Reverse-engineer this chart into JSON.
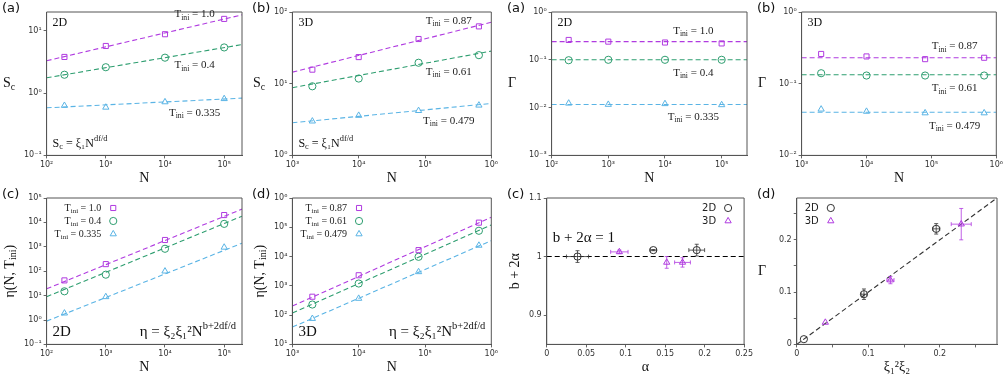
{
  "chart_data": [
    {
      "type": "scatter",
      "title": "(a)",
      "xlabel": "N",
      "ylabel": "S$_{c}$",
      "log": "xy",
      "xlim": [
        100,
        200000
      ],
      "xticks": [
        {
          "value": 100,
          "label": "10²"
        },
        {
          "value": 1000,
          "label": "10³"
        },
        {
          "value": 10000,
          "label": "10⁴"
        },
        {
          "value": 100000,
          "label": "10⁵"
        }
      ],
      "ylim": [
        0.1,
        20
      ],
      "yticks": [
        {
          "value": 0.1,
          "label": "10⁻¹"
        },
        {
          "value": 1,
          "label": "10⁰"
        },
        {
          "value": 10,
          "label": "10¹"
        }
      ],
      "x": [
        200,
        1000,
        10000,
        100000
      ],
      "legend": false,
      "series": [
        {
          "name": "T$_{ini}$ = 1.0",
          "color": "#b03be0",
          "marker": "square",
          "values": [
            3.8,
            5.7,
            8.8,
            15.5
          ]
        },
        {
          "name": "T$_{ini}$ = 0.4",
          "color": "#2e9e70",
          "marker": "circle",
          "values": [
            1.97,
            2.6,
            3.7,
            5.4
          ]
        },
        {
          "name": "T$_{ini}$ = 0.335",
          "color": "#5ab4e5",
          "marker": "triangle",
          "values": [
            0.63,
            0.59,
            0.72,
            0.81
          ]
        },
        {
          "type": "line",
          "line_style": "dashed",
          "color": "#b03be0",
          "x": [
            100,
            200000
          ],
          "values": [
            3.3,
            18
          ]
        },
        {
          "type": "line",
          "line_style": "dashed",
          "color": "#2e9e70",
          "x": [
            100,
            200000
          ],
          "values": [
            1.76,
            6.0
          ]
        },
        {
          "type": "line",
          "line_style": "dashed",
          "color": "#5ab4e5",
          "x": [
            100,
            200000
          ],
          "values": [
            0.58,
            0.83
          ]
        }
      ],
      "annotations": [
        "2D",
        "S$_{c}$ = ξ₁N$^{df/d}$"
      ]
    },
    {
      "type": "scatter",
      "title": "(b)",
      "xlabel": "N",
      "ylabel": "S$_{c}$",
      "log": "xy",
      "xlim": [
        1000,
        1000000
      ],
      "xticks": [
        {
          "value": 1000,
          "label": "10³"
        },
        {
          "value": 10000,
          "label": "10⁴"
        },
        {
          "value": 100000,
          "label": "10⁵"
        },
        {
          "value": 1000000,
          "label": "10⁶"
        }
      ],
      "ylim": [
        1,
        100
      ],
      "yticks": [
        {
          "value": 1,
          "label": "10⁰"
        },
        {
          "value": 10,
          "label": "10¹"
        },
        {
          "value": 100,
          "label": "10²"
        }
      ],
      "x": [
        2000,
        10000,
        80000,
        650000
      ],
      "legend": false,
      "series": [
        {
          "name": "T$_{ini}$ = 0.87",
          "color": "#b03be0",
          "marker": "square",
          "values": [
            15.7,
            23.5,
            42,
            63
          ]
        },
        {
          "name": "T$_{ini}$ = 0.61",
          "color": "#2e9e70",
          "marker": "circle",
          "values": [
            9.2,
            11.8,
            19.6,
            25
          ]
        },
        {
          "name": "T$_{ini}$ = 0.479",
          "color": "#5ab4e5",
          "marker": "triangle",
          "values": [
            3.0,
            3.6,
            4.2,
            5.0
          ]
        },
        {
          "type": "line",
          "line_style": "dashed",
          "color": "#b03be0",
          "x": [
            1000,
            1000000
          ],
          "values": [
            14.5,
            72
          ]
        },
        {
          "type": "line",
          "line_style": "dashed",
          "color": "#2e9e70",
          "x": [
            1000,
            1000000
          ],
          "values": [
            8.8,
            28.5
          ]
        },
        {
          "type": "line",
          "line_style": "dashed",
          "color": "#5ab4e5",
          "x": [
            1000,
            1000000
          ],
          "values": [
            2.85,
            5.3
          ]
        }
      ],
      "annotations": [
        "3D",
        "S$_{c}$ = ξ₁N$^{df/d}$"
      ]
    },
    {
      "type": "scatter",
      "title": "(c)",
      "xlabel": "N",
      "ylabel": "η(N, T$_{ini}$)",
      "log": "xy",
      "xlim": [
        100,
        200000
      ],
      "xticks": [
        {
          "value": 100,
          "label": "10²"
        },
        {
          "value": 1000,
          "label": "10³"
        },
        {
          "value": 10000,
          "label": "10⁴"
        },
        {
          "value": 100000,
          "label": "10⁵"
        }
      ],
      "ylim": [
        0.1,
        100000
      ],
      "yticks": [
        {
          "value": 0.1,
          "label": "10⁻¹"
        },
        {
          "value": 1,
          "label": "10⁰"
        },
        {
          "value": 10,
          "label": "10¹"
        },
        {
          "value": 100,
          "label": "10²"
        },
        {
          "value": 1000,
          "label": "10³"
        },
        {
          "value": 10000,
          "label": "10⁴"
        },
        {
          "value": 100000,
          "label": "10⁵"
        }
      ],
      "x": [
        200,
        1000,
        10000,
        100000
      ],
      "legend": "top left",
      "series": [
        {
          "name": "T$_{ini}$ = 1.0",
          "color": "#b03be0",
          "marker": "square",
          "values": [
            42,
            195,
            1900,
            20000
          ]
        },
        {
          "name": "T$_{ini}$ = 0.4",
          "color": "#2e9e70",
          "marker": "circle",
          "values": [
            15,
            72,
            830,
            8700
          ]
        },
        {
          "name": "T$_{ini}$ = 0.335",
          "color": "#5ab4e5",
          "marker": "triangle",
          "values": [
            1.9,
            8.9,
            100,
            950
          ]
        },
        {
          "type": "line",
          "line_style": "dashed",
          "color": "#b03be0",
          "x": [
            100,
            200000
          ],
          "values": [
            19,
            35000
          ]
        },
        {
          "type": "line",
          "line_style": "dashed",
          "color": "#2e9e70",
          "x": [
            100,
            200000
          ],
          "values": [
            9,
            18000
          ]
        },
        {
          "type": "line",
          "line_style": "dashed",
          "color": "#5ab4e5",
          "x": [
            100,
            200000
          ],
          "values": [
            0.9,
            1400
          ]
        }
      ],
      "annotations": [
        "2D",
        "η = ξ₂ξ₁²N$^{b+2df/d}$"
      ]
    },
    {
      "type": "scatter",
      "title": "(d)",
      "xlabel": "N",
      "ylabel": "η(N, T$_{ini}$)",
      "log": "xy",
      "xlim": [
        1000,
        1000000
      ],
      "xticks": [
        {
          "value": 1000,
          "label": "10³"
        },
        {
          "value": 10000,
          "label": "10⁴"
        },
        {
          "value": 100000,
          "label": "10⁵"
        },
        {
          "value": 1000000,
          "label": "10⁶"
        }
      ],
      "ylim": [
        10,
        1000000
      ],
      "yticks": [
        {
          "value": 10,
          "label": "10¹"
        },
        {
          "value": 100,
          "label": "10²"
        },
        {
          "value": 1000,
          "label": "10³"
        },
        {
          "value": 10000,
          "label": "10⁴"
        },
        {
          "value": 100000,
          "label": "10⁵"
        },
        {
          "value": 1000000,
          "label": "10⁶"
        }
      ],
      "x": [
        2000,
        10000,
        80000,
        650000
      ],
      "legend": "top left",
      "series": [
        {
          "name": "T$_{ini}$ = 0.87",
          "color": "#b03be0",
          "marker": "square",
          "values": [
            425,
            2300,
            16600,
            144000
          ]
        },
        {
          "name": "T$_{ini}$ = 0.61",
          "color": "#2e9e70",
          "marker": "circle",
          "values": [
            230,
            1200,
            9800,
            76000
          ]
        },
        {
          "name": "T$_{ini}$ = 0.479",
          "color": "#5ab4e5",
          "marker": "triangle",
          "values": [
            76,
            370,
            3000,
            24000
          ]
        },
        {
          "type": "line",
          "line_style": "dashed",
          "color": "#b03be0",
          "x": [
            1000,
            1000000
          ],
          "values": [
            205,
            220000
          ]
        },
        {
          "type": "line",
          "line_style": "dashed",
          "color": "#2e9e70",
          "x": [
            1000,
            1000000
          ],
          "values": [
            118,
            120000
          ]
        },
        {
          "type": "line",
          "line_style": "dashed",
          "color": "#5ab4e5",
          "x": [
            1000,
            1000000
          ],
          "values": [
            39,
            35000
          ]
        }
      ],
      "annotations": [
        "3D",
        "η = ξ₂ξ₁²N$^{b+2df/d}$"
      ]
    },
    {
      "type": "scatter",
      "title": "(a)",
      "xlabel": "N",
      "ylabel": "Γ",
      "log": "xy",
      "xlim": [
        100,
        280000
      ],
      "xticks": [
        {
          "value": 100,
          "label": "10²"
        },
        {
          "value": 1000,
          "label": "10³"
        },
        {
          "value": 10000,
          "label": "10⁴"
        },
        {
          "value": 100000,
          "label": "10⁵"
        }
      ],
      "ylim": [
        0.001,
        1
      ],
      "yticks": [
        {
          "value": 0.001,
          "label": "10⁻³"
        },
        {
          "value": 0.01,
          "label": "10⁻²"
        },
        {
          "value": 0.1,
          "label": "10⁻¹"
        },
        {
          "value": 1,
          "label": "10⁰"
        }
      ],
      "x": [
        200,
        1000,
        10000,
        100000
      ],
      "legend": false,
      "series": [
        {
          "name": "T$_{ini}$ = 1.0",
          "color": "#b03be0",
          "marker": "square",
          "values": [
            0.26,
            0.24,
            0.23,
            0.22
          ]
        },
        {
          "name": "T$_{ini}$ = 0.4",
          "color": "#2e9e70",
          "marker": "circle",
          "values": [
            0.098,
            0.1,
            0.1,
            0.1
          ]
        },
        {
          "name": "T$_{ini}$ = 0.335",
          "color": "#5ab4e5",
          "marker": "triangle",
          "values": [
            0.0123,
            0.0116,
            0.012,
            0.0114
          ]
        },
        {
          "type": "line",
          "line_style": "dashed",
          "color": "#b03be0",
          "x": [
            100,
            280000
          ],
          "values": [
            0.24,
            0.24
          ]
        },
        {
          "type": "line",
          "line_style": "dashed",
          "color": "#2e9e70",
          "x": [
            100,
            280000
          ],
          "values": [
            0.1,
            0.1
          ]
        },
        {
          "type": "line",
          "line_style": "dashed",
          "color": "#5ab4e5",
          "x": [
            100,
            280000
          ],
          "values": [
            0.0116,
            0.0116
          ]
        }
      ],
      "annotations": [
        "2D"
      ]
    },
    {
      "type": "scatter",
      "title": "(b)",
      "xlabel": "N",
      "ylabel": "Γ",
      "log": "xy",
      "xlim": [
        1000,
        1000000
      ],
      "xticks": [
        {
          "value": 1000,
          "label": "10³"
        },
        {
          "value": 10000,
          "label": "10⁴"
        },
        {
          "value": 100000,
          "label": "10⁵"
        },
        {
          "value": 1000000,
          "label": "10⁶"
        }
      ],
      "ylim": [
        0.01,
        1
      ],
      "yticks": [
        {
          "value": 0.01,
          "label": "10⁻²"
        },
        {
          "value": 0.1,
          "label": "10⁻¹"
        },
        {
          "value": 1,
          "label": "10⁰"
        }
      ],
      "x": [
        2000,
        10000,
        80000,
        650000
      ],
      "legend": false,
      "series": [
        {
          "name": "T$_{ini}$ = 0.87",
          "color": "#b03be0",
          "marker": "square",
          "values": [
            0.26,
            0.24,
            0.22,
            0.23
          ]
        },
        {
          "name": "T$_{ini}$ = 0.61",
          "color": "#2e9e70",
          "marker": "circle",
          "values": [
            0.14,
            0.13,
            0.13,
            0.13
          ]
        },
        {
          "name": "T$_{ini}$ = 0.479",
          "color": "#5ab4e5",
          "marker": "triangle",
          "values": [
            0.044,
            0.041,
            0.039,
            0.039
          ]
        },
        {
          "type": "line",
          "line_style": "dashed",
          "color": "#b03be0",
          "x": [
            1000,
            1000000
          ],
          "values": [
            0.23,
            0.23
          ]
        },
        {
          "type": "line",
          "line_style": "dashed",
          "color": "#2e9e70",
          "x": [
            1000,
            1000000
          ],
          "values": [
            0.133,
            0.133
          ]
        },
        {
          "type": "line",
          "line_style": "dashed",
          "color": "#5ab4e5",
          "x": [
            1000,
            1000000
          ],
          "values": [
            0.04,
            0.04
          ]
        }
      ],
      "annotations": [
        "3D"
      ]
    },
    {
      "type": "scatter",
      "title": "(c)",
      "xlabel": "α",
      "ylabel": "b + 2α",
      "xlim": [
        0,
        0.25
      ],
      "xticks": [
        0,
        0.05,
        0.1,
        0.15,
        0.2,
        0.25
      ],
      "ylim": [
        0.85,
        1.1
      ],
      "yticks": [
        0.9,
        1,
        1.1
      ],
      "legend": "top right",
      "series": [
        {
          "name": "2D",
          "color": "#333333",
          "marker": "circle",
          "x": [
            0.039,
            0.135,
            0.19
          ],
          "values": [
            1,
            1.011,
            1.011
          ],
          "errors": [
            0.01,
            0.001,
            0.01
          ],
          "xerrors": [
            0.014,
            0.004,
            0.01
          ]
        },
        {
          "name": "3D",
          "color": "#b03be0",
          "marker": "triangle",
          "x": [
            0.092,
            0.152,
            0.172
          ],
          "values": [
            1.008,
            0.99,
            0.99
          ],
          "errors": [
            0.003,
            0.01,
            0.008
          ],
          "xerrors": [
            0.011,
            null,
            0.01
          ]
        }
      ],
      "ref_lines": [
        {
          "axis": "y",
          "value": 1,
          "line_style": "dashed",
          "color": "#000000"
        }
      ],
      "annotations": [
        "b + 2α = 1"
      ]
    },
    {
      "type": "scatter",
      "title": "(d)",
      "xlabel": "ξ₁²ξ₂",
      "ylabel": "Γ",
      "xlim": [
        0,
        0.28
      ],
      "xticks": [
        0,
        {
          "value": 0.05,
          "label": null
        },
        0.1,
        {
          "value": 0.15,
          "label": null
        },
        0.2,
        {
          "value": 0.25,
          "label": null
        }
      ],
      "ylim": [
        0,
        0.28
      ],
      "yticks": [
        0,
        {
          "value": 0.05,
          "label": null
        },
        0.1,
        {
          "value": 0.15,
          "label": null
        },
        0.2,
        {
          "value": 0.25,
          "label": null
        }
      ],
      "legend": "top left",
      "series": [
        {
          "name": "2D",
          "color": "#333333",
          "marker": "circle",
          "x": [
            0.01,
            0.094,
            0.195
          ],
          "values": [
            0.01,
            0.096,
            0.221
          ],
          "errors": [
            null,
            0.01,
            0.01
          ],
          "xerrors": [
            null,
            0.004,
            0.005
          ]
        },
        {
          "name": "3D",
          "color": "#b03be0",
          "marker": "triangle",
          "x": [
            0.04,
            0.131,
            0.23
          ],
          "values": [
            0.042,
            0.123,
            0.23
          ],
          "errors": [
            null,
            0.007,
            0.03
          ],
          "xerrors": [
            null,
            0.005,
            0.014
          ]
        },
        {
          "type": "line",
          "line_style": "dashed",
          "color": "#333333",
          "x": [
            0,
            0.28
          ],
          "values": [
            0,
            0.28
          ]
        }
      ]
    }
  ]
}
